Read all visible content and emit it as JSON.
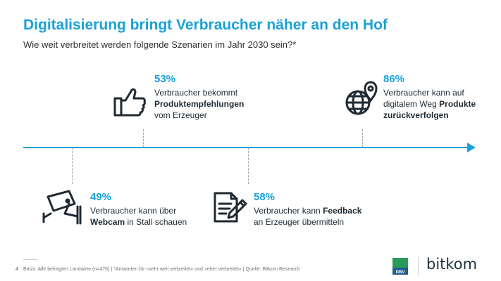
{
  "header": {
    "title": "Digitalisierung bringt Verbraucher näher an den Hof",
    "subtitle": "Wie weit verbreitet werden folgende Szenarien im Jahr 2030 sein?*"
  },
  "colors": {
    "accent": "#1aa1d8",
    "text": "#1f2a33",
    "dbv_green": "#2a9a5a",
    "dbv_blue": "#1e5d8c"
  },
  "scenarios": [
    {
      "percent": "53%",
      "icon": "thumbs-up-icon",
      "line1": "Verbraucher bekommt",
      "line2": "Produktempfehlungen",
      "line3": "vom Erzeuger"
    },
    {
      "percent": "86%",
      "icon": "globe-location-pin-icon",
      "line1": "Verbraucher kann auf",
      "line2_pre": "digitalem Weg ",
      "line2_bold": "Produkte",
      "line3": "zurückverfolgen"
    },
    {
      "percent": "49%",
      "icon": "security-camera-icon",
      "line1": "Verbraucher kann über",
      "line2_bold": "Webcam",
      "line2_post": " in Stall schauen"
    },
    {
      "percent": "58%",
      "icon": "document-pen-icon",
      "line1_pre": "Verbraucher kann ",
      "line1_bold": "Feedback",
      "line2": "an Erzeuger übermitteln"
    }
  ],
  "footer": {
    "page_number": "4",
    "source": "Basis: Alle befragten Landwirte (n=476) | *Antworten für »sehr weit verbreitet« und »eher verbreitet« | Quelle: Bitkom Research"
  },
  "logos": {
    "dbv": "DBV",
    "bitkom": "bitkom"
  }
}
